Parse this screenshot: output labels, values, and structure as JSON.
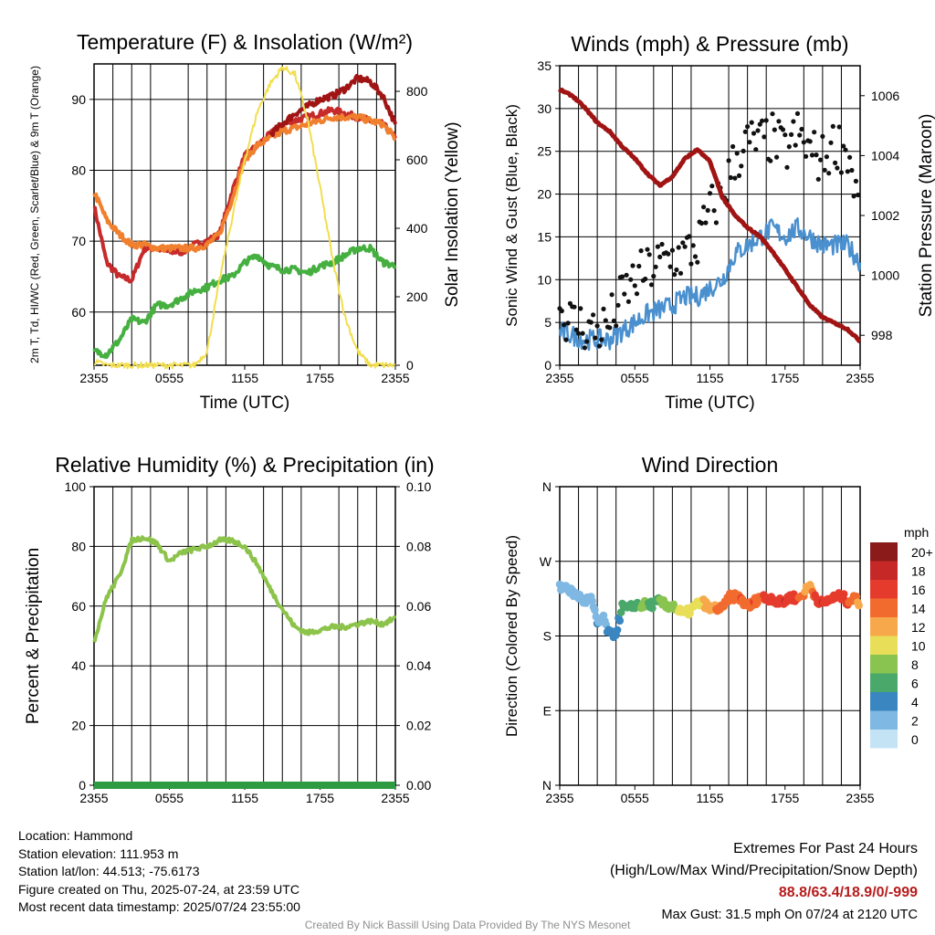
{
  "chart_data": [
    {
      "type": "line",
      "panel": "temperature",
      "title": "Temperature (F) & Insolation (W/m²)",
      "xlabel": "Time (UTC)",
      "ylabel": "2m T, Td, HI/WC (Red, Green, Scarlet/Blue) & 9m T (Orange)",
      "y2label": "Solar Insolation (Yellow)",
      "x_ticks": [
        "2355",
        "0555",
        "1155",
        "1755",
        "2355"
      ],
      "ylim": [
        52.5,
        95
      ],
      "y_ticks": [
        60,
        70,
        80,
        90
      ],
      "y2lim": [
        0,
        880
      ],
      "y2_ticks": [
        0,
        200,
        400,
        600,
        800
      ],
      "grid": true,
      "series": [
        {
          "name": "2m T",
          "color": "#c62a2a",
          "axis": "left",
          "x": [
            0,
            1,
            2,
            3,
            4,
            5,
            6,
            7,
            8,
            9,
            10,
            11,
            12,
            13,
            14,
            15,
            16,
            17,
            18,
            19,
            20,
            21,
            22,
            23,
            24
          ],
          "values": [
            75,
            67,
            65,
            64.5,
            69,
            69,
            68.5,
            68.5,
            69.5,
            70,
            71,
            77,
            82,
            83.5,
            85,
            86.5,
            87,
            87.5,
            88,
            88.5,
            88,
            87.5,
            87,
            86.5,
            84.5
          ]
        },
        {
          "name": "9m T",
          "color": "#f07f2e",
          "axis": "left",
          "x": [
            0,
            1,
            2,
            3,
            4,
            5,
            6,
            7,
            8,
            9,
            10,
            11,
            12,
            13,
            14,
            15,
            16,
            17,
            18,
            19,
            20,
            21,
            22,
            23,
            24
          ],
          "values": [
            77,
            73,
            71,
            69.5,
            69.5,
            69,
            69,
            69,
            69,
            69.5,
            71,
            76,
            81.5,
            83.5,
            84.5,
            85.5,
            86,
            86.5,
            87,
            87.5,
            87.5,
            87.5,
            87,
            86.5,
            84.5
          ]
        },
        {
          "name": "HI/WC",
          "color": "#a01414",
          "axis": "left",
          "x": [
            14,
            15,
            16,
            17,
            18,
            19,
            20,
            21,
            22,
            23,
            24
          ],
          "values": [
            85,
            86.5,
            88,
            89,
            90,
            90.5,
            91.5,
            93,
            92.5,
            90.5,
            86.5
          ]
        },
        {
          "name": "2m Td",
          "color": "#45b040",
          "axis": "left",
          "x": [
            0,
            1,
            2,
            3,
            4,
            5,
            6,
            7,
            8,
            9,
            10,
            11,
            12,
            13,
            14,
            15,
            16,
            17,
            18,
            19,
            20,
            21,
            22,
            23,
            24
          ],
          "values": [
            54.5,
            54,
            56,
            59,
            58.5,
            61,
            61,
            62,
            63,
            63.5,
            64.5,
            65,
            67,
            68,
            66.5,
            66,
            66,
            65.5,
            66.5,
            67,
            68,
            69,
            69,
            67,
            66.5
          ]
        },
        {
          "name": "Solar Insolation",
          "color": "#f2de4e",
          "axis": "right",
          "x": [
            0,
            1,
            2,
            3,
            4,
            5,
            6,
            7,
            8,
            9,
            10,
            11,
            12,
            13,
            14,
            15,
            16,
            17,
            18,
            19,
            20,
            21,
            22,
            23,
            24
          ],
          "values": [
            10,
            0,
            0,
            0,
            0,
            0,
            0,
            0,
            0,
            40,
            250,
            430,
            600,
            740,
            820,
            870,
            850,
            720,
            520,
            310,
            140,
            40,
            0,
            0,
            0
          ]
        }
      ]
    },
    {
      "type": "line",
      "panel": "winds",
      "title": "Winds (mph) & Pressure (mb)",
      "xlabel": "Time (UTC)",
      "ylabel": "Sonic Wind & Gust (Blue, Black)",
      "y2label": "Station Pressure (Maroon)",
      "x_ticks": [
        "2355",
        "0555",
        "1155",
        "1755",
        "2355"
      ],
      "ylim": [
        0,
        35
      ],
      "y_ticks": [
        0,
        5,
        10,
        15,
        20,
        25,
        30,
        35
      ],
      "y2lim": [
        997.0,
        1007.0
      ],
      "y2_ticks": [
        998,
        1000,
        1002,
        1004,
        1006
      ],
      "grid": true,
      "series": [
        {
          "name": "Sonic Wind",
          "color": "#4a90cf",
          "axis": "left",
          "type": "line",
          "x": [
            0,
            1,
            2,
            3,
            4,
            5,
            6,
            7,
            8,
            9,
            10,
            11,
            12,
            13,
            14,
            15,
            16,
            17,
            18,
            19,
            20,
            21,
            22,
            23,
            24
          ],
          "values": [
            4,
            3.5,
            3,
            3,
            3,
            4,
            5,
            6,
            6.5,
            7,
            8,
            8,
            9,
            10,
            13,
            14,
            15,
            16,
            15,
            16,
            15,
            14,
            14,
            14,
            12
          ]
        },
        {
          "name": "Gust",
          "color": "#111111",
          "axis": "left",
          "type": "scatter",
          "x": [
            0,
            1,
            2,
            3,
            4,
            5,
            6,
            7,
            8,
            9,
            10,
            11,
            12,
            13,
            14,
            15,
            16,
            17,
            18,
            19,
            20,
            21,
            22,
            23,
            24
          ],
          "values": [
            6.5,
            5,
            4.5,
            4,
            5,
            8,
            10,
            11,
            12,
            12.5,
            13,
            14,
            18,
            20,
            24,
            26,
            26,
            26.5,
            25,
            27,
            25,
            24,
            26,
            25,
            18
          ]
        },
        {
          "name": "Station Pressure",
          "color": "#a01414",
          "axis": "right",
          "type": "line",
          "x": [
            0,
            1,
            2,
            3,
            4,
            5,
            6,
            7,
            8,
            9,
            10,
            11,
            12,
            13,
            14,
            15,
            16,
            17,
            18,
            19,
            20,
            21,
            22,
            23,
            24
          ],
          "values": [
            1006.2,
            1006.0,
            1005.6,
            1005.1,
            1004.8,
            1004.3,
            1003.9,
            1003.4,
            1003.0,
            1003.3,
            1003.9,
            1004.2,
            1003.8,
            1002.6,
            1002.0,
            1001.6,
            1001.3,
            1000.8,
            1000.2,
            999.6,
            999.0,
            998.6,
            998.4,
            998.2,
            997.8
          ]
        }
      ]
    },
    {
      "type": "line",
      "panel": "humidity",
      "title": "Relative Humidity (%) & Precipitation (in)",
      "ylabel": "Percent & Precipitation",
      "x_ticks": [
        "2355",
        "0555",
        "1155",
        "1755",
        "2355"
      ],
      "ylim": [
        0,
        100
      ],
      "y_ticks": [
        0,
        20,
        40,
        60,
        80,
        100
      ],
      "y2lim": [
        0,
        0.1
      ],
      "y2_ticks": [
        "0.00",
        "0.02",
        "0.04",
        "0.06",
        "0.08",
        "0.10"
      ],
      "grid": true,
      "series": [
        {
          "name": "Relative Humidity",
          "color": "#8cc34a",
          "axis": "left",
          "x": [
            0,
            1,
            2,
            3,
            4,
            5,
            6,
            7,
            8,
            9,
            10,
            11,
            12,
            13,
            14,
            15,
            16,
            17,
            18,
            19,
            20,
            21,
            22,
            23,
            24
          ],
          "values": [
            48,
            63,
            70,
            82,
            83,
            81,
            75,
            78,
            79,
            80,
            82,
            82,
            80,
            74,
            66,
            59,
            53,
            51,
            52,
            53,
            53,
            54,
            55,
            54,
            56
          ]
        },
        {
          "name": "Precipitation",
          "color": "#2e9a42",
          "axis": "right",
          "x": [
            0,
            24
          ],
          "values": [
            0,
            0
          ]
        }
      ]
    },
    {
      "type": "scatter",
      "panel": "wind-direction",
      "title": "Wind Direction",
      "ylabel": "Direction (Colored By Speed)",
      "x_ticks": [
        "2355",
        "0555",
        "1155",
        "1755",
        "2355"
      ],
      "y_ticks": [
        "N",
        "E",
        "S",
        "W",
        "N"
      ],
      "ylim": [
        0,
        360
      ],
      "grid": true,
      "colorbar": {
        "unit": "mph",
        "labels": [
          "20+",
          "18",
          "16",
          "14",
          "12",
          "10",
          "8",
          "6",
          "4",
          "2",
          "0"
        ],
        "colors": [
          "#8b1a1a",
          "#c62828",
          "#e53b2c",
          "#f26b2e",
          "#f7a84a",
          "#e8de58",
          "#8ac450",
          "#4aa86a",
          "#3a86c0",
          "#7fb8e2",
          "#c4e4f6"
        ]
      },
      "x": [
        0,
        0.5,
        1,
        1.5,
        2,
        2.5,
        3,
        3.5,
        4,
        4.5,
        5,
        5.5,
        6,
        6.5,
        7,
        7.5,
        8,
        8.5,
        9,
        9.5,
        10,
        10.5,
        11,
        11.5,
        12,
        12.5,
        13,
        13.5,
        14,
        14.5,
        15,
        15.5,
        16,
        16.5,
        17,
        17.5,
        18,
        18.5,
        19,
        19.5,
        20,
        20.5,
        21,
        21.5,
        22,
        22.5,
        23,
        23.5,
        24
      ],
      "values": [
        238,
        240,
        232,
        228,
        222,
        225,
        195,
        200,
        180,
        185,
        215,
        212,
        218,
        217,
        218,
        218,
        222,
        216,
        218,
        210,
        206,
        212,
        218,
        220,
        212,
        214,
        212,
        226,
        228,
        225,
        214,
        220,
        228,
        225,
        226,
        220,
        222,
        228,
        224,
        232,
        240,
        226,
        218,
        224,
        226,
        228,
        222,
        225,
        220
      ],
      "speeds": [
        2,
        2,
        1,
        2,
        1,
        2,
        3,
        2,
        4,
        3,
        6,
        5,
        6,
        7,
        7,
        6,
        7,
        8,
        7,
        9,
        10,
        10,
        9,
        11,
        12,
        13,
        14,
        13,
        14,
        15,
        14,
        15,
        14,
        16,
        15,
        16,
        17,
        16,
        15,
        13,
        12,
        16,
        17,
        16,
        15,
        16,
        15,
        14,
        12
      ]
    }
  ],
  "info": {
    "location": "Location: Hammond",
    "elevation": "Station elevation: 111.953 m",
    "latlon": "Station lat/lon: 44.513; -75.6173",
    "created": "Figure created on Thu, 2025-07-24, at 23:59 UTC",
    "recent": "Most recent data timestamp: 2025/07/24 23:55:00"
  },
  "extremes": {
    "title": "Extremes For Past 24 Hours",
    "subtitle": "(High/Low/Max Wind/Precipitation/Snow Depth)",
    "values": "88.8/63.4/18.9/0/-999",
    "gust": "Max Gust: 31.5 mph On 07/24 at 2120 UTC"
  },
  "credit": "Created By Nick Bassill Using Data Provided By The NYS Mesonet"
}
